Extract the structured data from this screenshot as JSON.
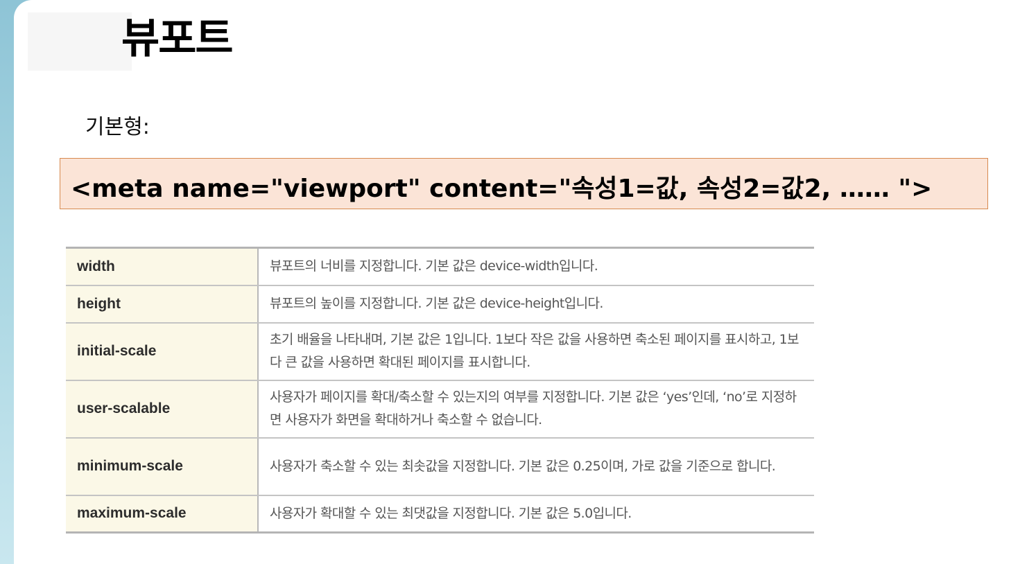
{
  "slide": {
    "title": "뷰포트",
    "subtitle": "기본형:",
    "code": "<meta name=\"viewport\" content=\"속성1=값, 속성2=값2, …… \">"
  },
  "properties": [
    {
      "name": "width",
      "description": "뷰포트의 너비를 지정합니다. 기본 값은 device-width입니다."
    },
    {
      "name": "height",
      "description": "뷰포트의 높이를 지정합니다. 기본 값은 device-height입니다."
    },
    {
      "name": "initial-scale",
      "description": "초기 배율을 나타내며, 기본 값은 1입니다. 1보다 작은 값을 사용하면 축소된 페이지를 표시하고, 1보다 큰 값을 사용하면 확대된 페이지를 표시합니다."
    },
    {
      "name": "user-scalable",
      "description": "사용자가 페이지를 확대/축소할 수 있는지의 여부를 지정합니다. 기본 값은 ‘yes’인데, ‘no’로 지정하면 사용자가 화면을 확대하거나 축소할 수 없습니다."
    },
    {
      "name": "minimum-scale",
      "description": "사용자가 축소할 수 있는 최솟값을 지정합니다. 기본 값은 0.25이며, 가로 값을 기준으로 합니다."
    },
    {
      "name": "maximum-scale",
      "description": "사용자가 확대할 수 있는 최댓값을 지정합니다. 기본 값은 5.0입니다."
    }
  ]
}
